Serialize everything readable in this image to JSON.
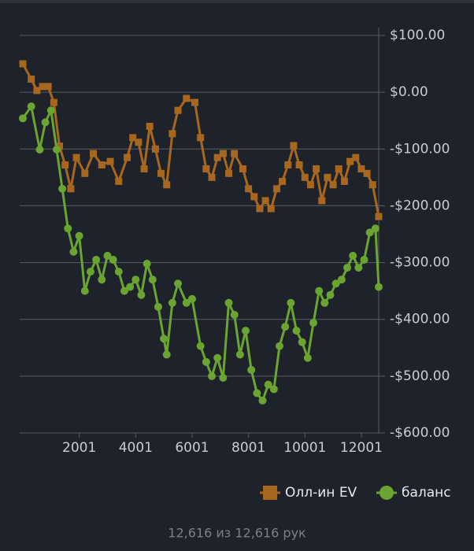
{
  "chart_data": {
    "type": "line",
    "xlim": [
      1,
      12616
    ],
    "xticks": [
      2001,
      4001,
      6001,
      8001,
      10001,
      12001
    ],
    "ylim": [
      -600,
      100
    ],
    "yticks": [
      {
        "value": 100,
        "label": "$100.00"
      },
      {
        "value": 0,
        "label": "$0.00"
      },
      {
        "value": -100,
        "label": "-$100.00"
      },
      {
        "value": -200,
        "label": "-$200.00"
      },
      {
        "value": -300,
        "label": "-$300.00"
      },
      {
        "value": -400,
        "label": "-$400.00"
      },
      {
        "value": -500,
        "label": "-$500.00"
      },
      {
        "value": -600,
        "label": "-$600.00"
      }
    ],
    "grid": true,
    "legend": "bottom-right",
    "series": [
      {
        "name": "Олл-ин EV",
        "color": "#a8671f",
        "marker": "square",
        "x": [
          1,
          300,
          500,
          700,
          900,
          1100,
          1300,
          1500,
          1700,
          1900,
          2200,
          2500,
          2800,
          3100,
          3400,
          3700,
          3900,
          4100,
          4300,
          4500,
          4700,
          4900,
          5100,
          5300,
          5500,
          5800,
          6100,
          6300,
          6500,
          6700,
          6900,
          7100,
          7300,
          7500,
          7800,
          8000,
          8200,
          8400,
          8600,
          8800,
          9000,
          9200,
          9400,
          9600,
          9800,
          10000,
          10200,
          10400,
          10600,
          10800,
          11000,
          11200,
          11400,
          11600,
          11800,
          12000,
          12200,
          12400,
          12616
        ],
        "values": [
          50,
          23,
          3,
          10,
          10,
          -18,
          -95,
          -128,
          -170,
          -115,
          -143,
          -108,
          -128,
          -122,
          -157,
          -115,
          -80,
          -88,
          -135,
          -60,
          -100,
          -143,
          -163,
          -73,
          -32,
          -11,
          -18,
          -80,
          -135,
          -150,
          -115,
          -108,
          -143,
          -108,
          -135,
          -170,
          -184,
          -205,
          -191,
          -205,
          -170,
          -157,
          -128,
          -94,
          -128,
          -150,
          -163,
          -135,
          -191,
          -150,
          -163,
          -135,
          -157,
          -122,
          -115,
          -135,
          -143,
          -163,
          -219
        ]
      },
      {
        "name": "баланс",
        "color": "#6aa531",
        "marker": "circle",
        "x": [
          1,
          300,
          600,
          800,
          1000,
          1200,
          1400,
          1600,
          1800,
          2000,
          2200,
          2400,
          2600,
          2800,
          3000,
          3200,
          3400,
          3600,
          3800,
          4000,
          4200,
          4400,
          4600,
          4800,
          5000,
          5100,
          5300,
          5500,
          5800,
          6000,
          6300,
          6500,
          6700,
          6900,
          7100,
          7300,
          7500,
          7700,
          7900,
          8100,
          8300,
          8500,
          8700,
          8900,
          9100,
          9300,
          9500,
          9700,
          9900,
          10100,
          10300,
          10500,
          10700,
          10900,
          11100,
          11300,
          11500,
          11700,
          11900,
          12100,
          12300,
          12500,
          12616
        ],
        "values": [
          -46,
          -25,
          -101,
          -53,
          -32,
          -101,
          -170,
          -240,
          -281,
          -253,
          -350,
          -316,
          -295,
          -330,
          -288,
          -295,
          -316,
          -350,
          -343,
          -330,
          -357,
          -302,
          -330,
          -378,
          -434,
          -462,
          -371,
          -337,
          -371,
          -364,
          -447,
          -475,
          -500,
          -468,
          -503,
          -371,
          -392,
          -462,
          -420,
          -489,
          -530,
          -543,
          -515,
          -523,
          -447,
          -413,
          -371,
          -420,
          -440,
          -468,
          -406,
          -350,
          -371,
          -357,
          -337,
          -330,
          -309,
          -288,
          -309,
          -295,
          -247,
          -240,
          -343
        ]
      }
    ],
    "footer": "12,616 из 12,616 рук"
  }
}
